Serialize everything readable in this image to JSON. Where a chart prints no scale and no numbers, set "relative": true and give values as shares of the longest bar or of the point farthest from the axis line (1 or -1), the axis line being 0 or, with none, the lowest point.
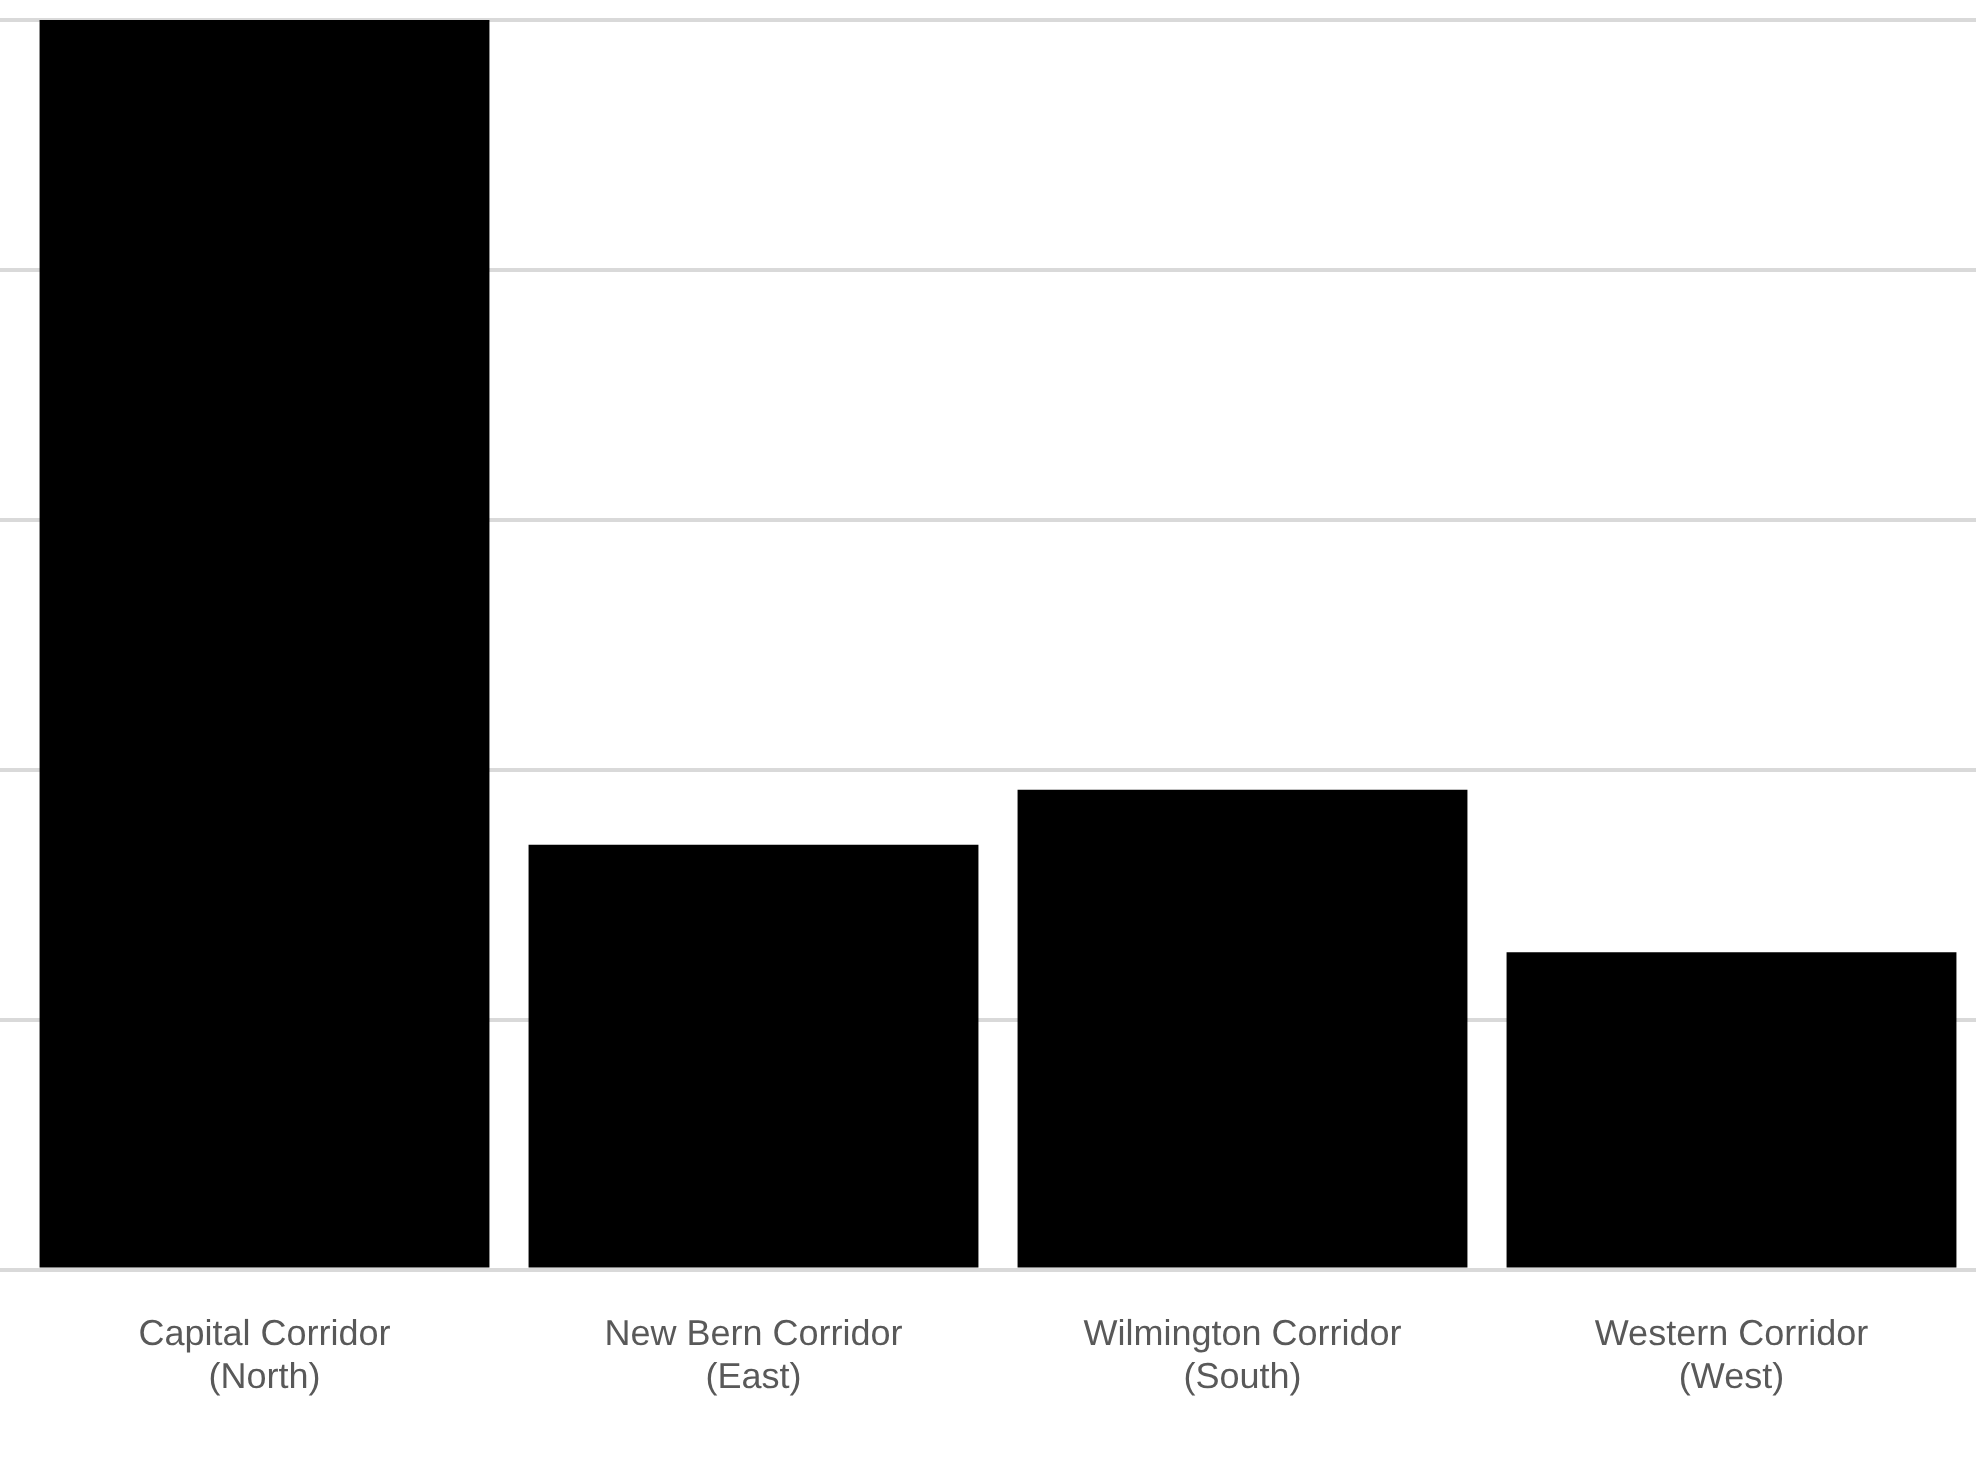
{
  "chart_data": {
    "type": "bar",
    "relative": true,
    "grid": "y",
    "categories": [
      "Capital Corridor (North)",
      "New Bern Corridor (East)",
      "Wilmington Corridor (South)",
      "Western Corridor (West)"
    ],
    "values": [
      1,
      0.34,
      0.384,
      0.254
    ],
    "color": "#000000"
  }
}
